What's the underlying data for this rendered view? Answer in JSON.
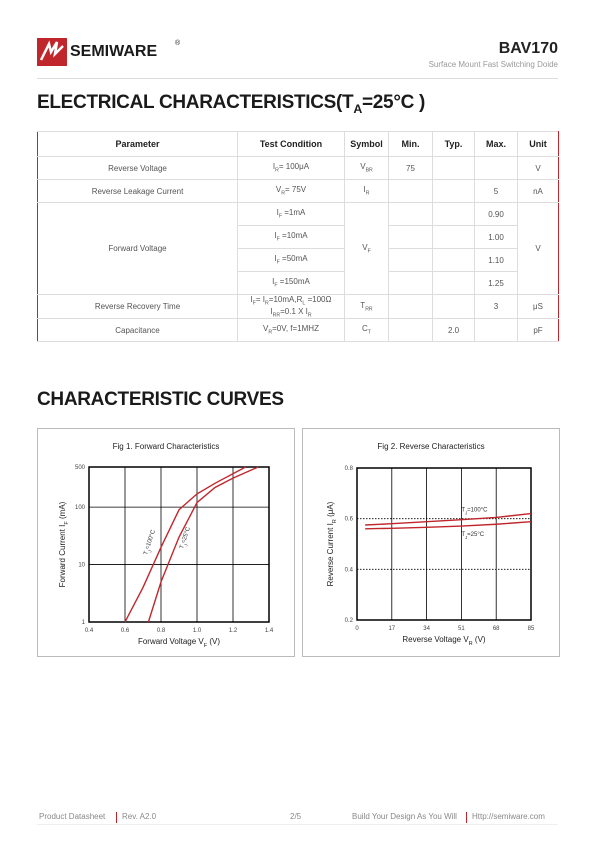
{
  "header": {
    "brand": "SEMIWARE",
    "registered": "®",
    "part": "BAV170",
    "subtitle": "Surface Mount Fast Switching Doide"
  },
  "section1": {
    "title": [
      "ELECTRICAL CHARACTERISTICS(T",
      {
        "sub": "A"
      },
      "=25°C )"
    ]
  },
  "table": {
    "header": [
      "Parameter",
      "Test Condition",
      "Symbol",
      "Min.",
      "Typ.",
      "Max.",
      "Unit"
    ],
    "rows": [
      {
        "parameter": "Reverse Voltage",
        "condition": [
          "I",
          {
            "sub": "R"
          },
          "= 100μA"
        ],
        "symbol": [
          "V",
          {
            "sub": "BR"
          }
        ],
        "min": "75",
        "unit": "V"
      },
      {
        "parameter": "Reverse Leakage Current",
        "condition": [
          "V",
          {
            "sub": "R"
          },
          "= 75V"
        ],
        "symbol": [
          "I",
          {
            "sub": "R"
          }
        ],
        "max": "5",
        "unit": "nA"
      },
      {
        "parameter": "Forward Voltage",
        "conditions": [
          [
            "I",
            {
              "sub": "F"
            },
            " =1mA"
          ],
          [
            "I",
            {
              "sub": "F"
            },
            " =10mA"
          ],
          [
            "I",
            {
              "sub": "F"
            },
            " =50mA"
          ],
          [
            "I",
            {
              "sub": "F"
            },
            " =150mA"
          ]
        ],
        "symbol": [
          "V",
          {
            "sub": "F"
          }
        ],
        "max": [
          "0.90",
          "1.00",
          "1.10",
          "1.25"
        ],
        "unit": "V"
      },
      {
        "parameter": "Reverse Recovery Time",
        "condition": [
          "I",
          {
            "sub": "F"
          },
          "= I",
          {
            "sub": "R"
          },
          "=10mA,R",
          {
            "sub": "L"
          },
          " =100Ω"
        ],
        "condition_line2": [
          "I",
          {
            "sub": "RR"
          },
          "=0.1 X I",
          {
            "sub": "R"
          }
        ],
        "symbol": [
          "T",
          {
            "sub": "RR"
          }
        ],
        "max": "3",
        "unit": "μS"
      },
      {
        "parameter": "Capacitance",
        "condition": [
          "V",
          {
            "sub": "R"
          },
          "=0V, f=1MHZ"
        ],
        "symbol": [
          "C",
          {
            "sub": "T"
          }
        ],
        "typ": "2.0",
        "unit": "pF"
      }
    ]
  },
  "section2": {
    "title": "CHARACTERISTIC CURVES"
  },
  "chart_data": [
    {
      "type": "line",
      "title": "Fig 1. Forward Characteristics",
      "x_label": [
        "Forward Voltage V",
        {
          "sub": "F"
        },
        " (V)"
      ],
      "y_label": [
        "Forward Current I",
        {
          "sub": "F"
        },
        " (mA)"
      ],
      "xlim": [
        0.4,
        1.4
      ],
      "xticks": [
        0.4,
        0.6,
        0.8,
        {
          "value": 1,
          "label": "1.0"
        },
        1.2,
        1.4
      ],
      "ylim": [
        1,
        500
      ],
      "yticks": [
        1,
        10,
        100,
        500
      ],
      "y_scale": "log",
      "grid": true,
      "series": [
        {
          "name": [
            "T",
            {
              "sub": "J"
            },
            "=100°C"
          ],
          "color": "#c0272d",
          "x": [
            0.6,
            0.7,
            0.8,
            0.9,
            1.0,
            1.1,
            1.27
          ],
          "values": [
            1,
            4,
            20,
            90,
            170,
            260,
            500
          ]
        },
        {
          "name": [
            "T",
            {
              "sub": "J"
            },
            "=25°C"
          ],
          "color": "#c0272d",
          "x": [
            0.73,
            0.8,
            0.9,
            1.0,
            1.1,
            1.2,
            1.34
          ],
          "values": [
            1,
            5,
            30,
            120,
            220,
            320,
            500
          ]
        }
      ]
    },
    {
      "type": "line",
      "title": "Fig 2. Reverse Characteristics",
      "x_label": [
        "Reverse Voltage V",
        {
          "sub": "R"
        },
        " (V)"
      ],
      "y_label": [
        "Reverse Current I",
        {
          "sub": "R"
        },
        " (μA)"
      ],
      "xlim": [
        0,
        85
      ],
      "xticks": [
        0,
        17,
        34,
        51,
        68,
        85
      ],
      "ylim": [
        0.2,
        0.8
      ],
      "yticks": [
        0.2,
        0.4,
        0.6,
        0.8
      ],
      "y_scale": "linear",
      "grid": true,
      "series": [
        {
          "name": [
            "T",
            {
              "sub": "J"
            },
            "=100°C"
          ],
          "color": "#c0272d",
          "x": [
            4,
            17,
            34,
            51,
            68,
            85
          ],
          "values": [
            0.575,
            0.58,
            0.588,
            0.596,
            0.605,
            0.62
          ]
        },
        {
          "name": [
            "T",
            {
              "sub": "J"
            },
            "=25°C"
          ],
          "color": "#c0272d",
          "x": [
            4,
            17,
            34,
            51,
            68,
            85
          ],
          "values": [
            0.56,
            0.562,
            0.566,
            0.571,
            0.578,
            0.588
          ]
        }
      ]
    }
  ],
  "footer": {
    "doc": "Product Datasheet",
    "rev": "Rev. A2.0",
    "page": "2/5",
    "slogan": "Build Your Design As You Will",
    "url": "Http://semiware.com"
  }
}
